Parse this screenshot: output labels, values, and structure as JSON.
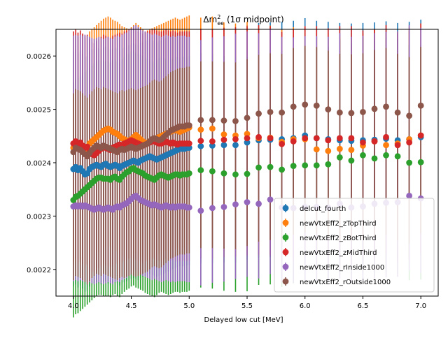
{
  "chart_data": {
    "type": "errorbar-scatter",
    "title": "Δm²ee (1σ midpoint)",
    "title_parts": {
      "base": "Δm",
      "sup": "2",
      "sub": "ee",
      "rest": " (1σ midpoint)"
    },
    "xlabel": "Delayed low cut [MeV]",
    "ylabel": "",
    "xlim": [
      3.85,
      7.15
    ],
    "ylim": [
      0.00215,
      0.00265
    ],
    "xticks": [
      "4.0",
      "4.5",
      "5.0",
      "5.5",
      "6.0",
      "6.5",
      "7.0"
    ],
    "yticks": [
      "0.0022",
      "0.0023",
      "0.0024",
      "0.0025",
      "0.0026"
    ],
    "legend_position": "lower-right",
    "series": [
      {
        "name": "delcut_fourth",
        "color": "#1f77b4",
        "err_low": 0.00022,
        "err_high": 0.00022,
        "x": [
          4.0,
          4.02,
          4.04,
          4.06,
          4.08,
          4.1,
          4.12,
          4.14,
          4.16,
          4.18,
          4.2,
          4.22,
          4.24,
          4.26,
          4.28,
          4.3,
          4.32,
          4.34,
          4.36,
          4.38,
          4.4,
          4.42,
          4.44,
          4.46,
          4.48,
          4.5,
          4.52,
          4.54,
          4.56,
          4.58,
          4.6,
          4.62,
          4.64,
          4.66,
          4.68,
          4.7,
          4.72,
          4.74,
          4.76,
          4.78,
          4.8,
          4.82,
          4.84,
          4.86,
          4.88,
          4.9,
          4.92,
          4.94,
          4.96,
          4.98,
          5.0,
          5.1,
          5.2,
          5.3,
          5.4,
          5.5,
          5.6,
          5.7,
          5.8,
          5.9,
          6.0,
          6.1,
          6.2,
          6.3,
          6.4,
          6.5,
          6.6,
          6.7,
          6.8,
          6.9,
          7.0
        ],
        "y": [
          0.002388,
          0.002392,
          0.002386,
          0.00239,
          0.002384,
          0.002378,
          0.00238,
          0.002388,
          0.002392,
          0.002394,
          0.002396,
          0.002394,
          0.002392,
          0.002396,
          0.002398,
          0.002394,
          0.002392,
          0.002394,
          0.002396,
          0.002394,
          0.00239,
          0.002394,
          0.002396,
          0.002398,
          0.0024,
          0.002402,
          0.002404,
          0.002402,
          0.0024,
          0.002404,
          0.002406,
          0.002408,
          0.00241,
          0.002412,
          0.00241,
          0.002408,
          0.002406,
          0.002408,
          0.00241,
          0.002412,
          0.002414,
          0.002416,
          0.002418,
          0.00242,
          0.002422,
          0.002424,
          0.002426,
          0.002426,
          0.002426,
          0.002428,
          0.002428,
          0.002431,
          0.002432,
          0.002433,
          0.002433,
          0.002438,
          0.002442,
          0.002443,
          0.002444,
          0.002446,
          0.002451,
          0.002446,
          0.002444,
          0.002442,
          0.002441,
          0.002442,
          0.002443,
          0.002445,
          0.002442,
          0.002444,
          0.002448
        ]
      },
      {
        "name": "newVtxEff2_zTopThird",
        "color": "#ff7f0e",
        "err_low": 0.00022,
        "err_high": 0.00021,
        "x": [
          4.0,
          4.02,
          4.04,
          4.06,
          4.08,
          4.1,
          4.12,
          4.14,
          4.16,
          4.18,
          4.2,
          4.22,
          4.24,
          4.26,
          4.28,
          4.3,
          4.32,
          4.34,
          4.36,
          4.38,
          4.4,
          4.42,
          4.44,
          4.46,
          4.48,
          4.5,
          4.52,
          4.54,
          4.56,
          4.58,
          4.6,
          4.62,
          4.64,
          4.66,
          4.68,
          4.7,
          4.72,
          4.74,
          4.76,
          4.78,
          4.8,
          4.82,
          4.84,
          4.86,
          4.88,
          4.9,
          4.92,
          4.94,
          4.96,
          4.98,
          5.0,
          5.1,
          5.2,
          5.3,
          5.4,
          5.5,
          5.6,
          5.7,
          5.8,
          5.9,
          6.0,
          6.1,
          6.2,
          6.3,
          6.4,
          6.5,
          6.6,
          6.7,
          6.8,
          6.9,
          7.0
        ],
        "y": [
          0.002428,
          0.002432,
          0.002426,
          0.002434,
          0.00243,
          0.002424,
          0.002428,
          0.002436,
          0.00244,
          0.002444,
          0.002448,
          0.002452,
          0.002456,
          0.00246,
          0.002462,
          0.002464,
          0.002462,
          0.002458,
          0.002456,
          0.002454,
          0.00245,
          0.002446,
          0.002444,
          0.002442,
          0.00244,
          0.002444,
          0.002448,
          0.002452,
          0.002448,
          0.002444,
          0.00244,
          0.002436,
          0.002438,
          0.00244,
          0.002442,
          0.002444,
          0.002446,
          0.002448,
          0.00245,
          0.002452,
          0.002454,
          0.002456,
          0.002458,
          0.00246,
          0.002462,
          0.00246,
          0.002458,
          0.00246,
          0.002462,
          0.002464,
          0.002466,
          0.002462,
          0.002464,
          0.002453,
          0.002451,
          0.002454,
          0.002446,
          0.002447,
          0.002439,
          0.002444,
          0.002444,
          0.002425,
          0.002422,
          0.002426,
          0.002424,
          0.002432,
          0.00244,
          0.002433,
          0.002436,
          0.002444,
          0.002451
        ]
      },
      {
        "name": "newVtxEff2_zBotThird",
        "color": "#2ca02c",
        "err_low": 0.00022,
        "err_high": 0.00022,
        "x": [
          4.0,
          4.02,
          4.04,
          4.06,
          4.08,
          4.1,
          4.12,
          4.14,
          4.16,
          4.18,
          4.2,
          4.22,
          4.24,
          4.26,
          4.28,
          4.3,
          4.32,
          4.34,
          4.36,
          4.38,
          4.4,
          4.42,
          4.44,
          4.46,
          4.48,
          4.5,
          4.52,
          4.54,
          4.56,
          4.58,
          4.6,
          4.62,
          4.64,
          4.66,
          4.68,
          4.7,
          4.72,
          4.74,
          4.76,
          4.78,
          4.8,
          4.82,
          4.84,
          4.86,
          4.88,
          4.9,
          4.92,
          4.94,
          4.96,
          4.98,
          5.0,
          5.1,
          5.2,
          5.3,
          5.4,
          5.5,
          5.6,
          5.7,
          5.8,
          5.9,
          6.0,
          6.1,
          6.2,
          6.3,
          6.4,
          6.5,
          6.6,
          6.7,
          6.8,
          6.9,
          7.0
        ],
        "y": [
          0.00233,
          0.002336,
          0.002338,
          0.002342,
          0.002346,
          0.00235,
          0.002354,
          0.002358,
          0.002362,
          0.002366,
          0.00237,
          0.002372,
          0.002372,
          0.00237,
          0.00237,
          0.00237,
          0.002368,
          0.002372,
          0.002374,
          0.00237,
          0.002368,
          0.002374,
          0.002378,
          0.002382,
          0.002384,
          0.002388,
          0.00239,
          0.002386,
          0.002384,
          0.002382,
          0.00238,
          0.002376,
          0.002374,
          0.002372,
          0.00237,
          0.002368,
          0.002372,
          0.002376,
          0.002378,
          0.002376,
          0.002374,
          0.002372,
          0.002374,
          0.002376,
          0.002378,
          0.002378,
          0.002376,
          0.002378,
          0.002378,
          0.002378,
          0.00238,
          0.002386,
          0.002384,
          0.00238,
          0.002378,
          0.002379,
          0.002391,
          0.002392,
          0.002387,
          0.002394,
          0.002395,
          0.002395,
          0.002397,
          0.00241,
          0.002404,
          0.002414,
          0.002408,
          0.002414,
          0.002412,
          0.0024,
          0.002401
        ]
      },
      {
        "name": "newVtxEff2_zMidThird",
        "color": "#d62728",
        "err_low": 0.00022,
        "err_high": 0.00021,
        "x": [
          4.0,
          4.02,
          4.04,
          4.06,
          4.08,
          4.1,
          4.12,
          4.14,
          4.16,
          4.18,
          4.2,
          4.22,
          4.24,
          4.26,
          4.28,
          4.3,
          4.32,
          4.34,
          4.36,
          4.38,
          4.4,
          4.42,
          4.44,
          4.46,
          4.48,
          4.5,
          4.52,
          4.54,
          4.56,
          4.58,
          4.6,
          4.62,
          4.64,
          4.66,
          4.68,
          4.7,
          4.72,
          4.74,
          4.76,
          4.78,
          4.8,
          4.82,
          4.84,
          4.86,
          4.88,
          4.9,
          4.92,
          4.94,
          4.96,
          4.98,
          5.0,
          5.1,
          5.2,
          5.3,
          5.4,
          5.5,
          5.6,
          5.7,
          5.8,
          5.9,
          6.0,
          6.1,
          6.2,
          6.3,
          6.4,
          6.5,
          6.6,
          6.7,
          6.8,
          6.9,
          7.0
        ],
        "y": [
          0.002436,
          0.00244,
          0.002434,
          0.002438,
          0.002432,
          0.002428,
          0.00243,
          0.002422,
          0.002416,
          0.002414,
          0.002418,
          0.002422,
          0.002426,
          0.00243,
          0.002428,
          0.002426,
          0.002424,
          0.002428,
          0.00243,
          0.002432,
          0.002434,
          0.002432,
          0.002436,
          0.002438,
          0.00244,
          0.002442,
          0.00244,
          0.002438,
          0.002436,
          0.002434,
          0.002432,
          0.002434,
          0.002436,
          0.002438,
          0.00244,
          0.00244,
          0.002438,
          0.002436,
          0.002436,
          0.002438,
          0.00244,
          0.002438,
          0.002436,
          0.002438,
          0.002436,
          0.002434,
          0.002436,
          0.002436,
          0.002436,
          0.002436,
          0.002436,
          0.002441,
          0.00244,
          0.002443,
          0.002444,
          0.002446,
          0.002448,
          0.002446,
          0.002435,
          0.00244,
          0.002446,
          0.002446,
          0.002442,
          0.002446,
          0.002446,
          0.002438,
          0.00244,
          0.002448,
          0.002433,
          0.002438,
          0.002451
        ]
      },
      {
        "name": "newVtxEff2_rInside1000",
        "color": "#9467bd",
        "err_low": 0.00014,
        "err_high": 0.00032,
        "x": [
          4.0,
          4.02,
          4.04,
          4.06,
          4.08,
          4.1,
          4.12,
          4.14,
          4.16,
          4.18,
          4.2,
          4.22,
          4.24,
          4.26,
          4.28,
          4.3,
          4.32,
          4.34,
          4.36,
          4.38,
          4.4,
          4.42,
          4.44,
          4.46,
          4.48,
          4.5,
          4.52,
          4.54,
          4.56,
          4.58,
          4.6,
          4.62,
          4.64,
          4.66,
          4.68,
          4.7,
          4.72,
          4.74,
          4.76,
          4.78,
          4.8,
          4.82,
          4.84,
          4.86,
          4.88,
          4.9,
          4.92,
          4.94,
          4.96,
          4.98,
          5.0,
          5.1,
          5.2,
          5.3,
          5.4,
          5.5,
          5.6,
          5.7,
          5.8,
          5.9,
          6.0,
          6.1,
          6.2,
          6.3,
          6.4,
          6.5,
          6.6,
          6.7,
          6.8,
          6.9,
          7.0
        ],
        "y": [
          0.002318,
          0.00232,
          0.002318,
          0.00232,
          0.002318,
          0.00232,
          0.002318,
          0.002316,
          0.002314,
          0.002312,
          0.002314,
          0.002316,
          0.002314,
          0.002312,
          0.002314,
          0.002316,
          0.002314,
          0.002312,
          0.002316,
          0.002318,
          0.002316,
          0.00232,
          0.002322,
          0.002324,
          0.002328,
          0.002332,
          0.002336,
          0.002338,
          0.002334,
          0.00233,
          0.002328,
          0.002326,
          0.002324,
          0.002322,
          0.00232,
          0.002322,
          0.00232,
          0.002318,
          0.002316,
          0.002318,
          0.00232,
          0.002318,
          0.002316,
          0.002318,
          0.002316,
          0.002318,
          0.002318,
          0.002318,
          0.002318,
          0.002316,
          0.002316,
          0.00231,
          0.002315,
          0.002317,
          0.002322,
          0.002326,
          0.002323,
          0.002331,
          0.002316,
          0.002315,
          0.002317,
          0.002317,
          0.002316,
          0.002323,
          0.002316,
          0.002318,
          0.002323,
          0.002325,
          0.002326,
          0.002338,
          0.002333
        ]
      },
      {
        "name": "newVtxEff2_rOutside1000",
        "color": "#8c564b",
        "err_low": 0.00024,
        "err_high": 0.00011,
        "x": [
          4.0,
          4.02,
          4.04,
          4.06,
          4.08,
          4.1,
          4.12,
          4.14,
          4.16,
          4.18,
          4.2,
          4.22,
          4.24,
          4.26,
          4.28,
          4.3,
          4.32,
          4.34,
          4.36,
          4.38,
          4.4,
          4.42,
          4.44,
          4.46,
          4.48,
          4.5,
          4.52,
          4.54,
          4.56,
          4.58,
          4.6,
          4.62,
          4.64,
          4.66,
          4.68,
          4.7,
          4.72,
          4.74,
          4.76,
          4.78,
          4.8,
          4.82,
          4.84,
          4.86,
          4.88,
          4.9,
          4.92,
          4.94,
          4.96,
          4.98,
          5.0,
          5.1,
          5.2,
          5.3,
          5.4,
          5.5,
          5.6,
          5.7,
          5.8,
          5.9,
          6.0,
          6.1,
          6.2,
          6.3,
          6.4,
          6.5,
          6.6,
          6.7,
          6.8,
          6.9,
          7.0
        ],
        "y": [
          0.00242,
          0.002428,
          0.002426,
          0.002424,
          0.00242,
          0.002416,
          0.002412,
          0.002418,
          0.002424,
          0.002428,
          0.002432,
          0.00243,
          0.002428,
          0.002432,
          0.00243,
          0.002428,
          0.002426,
          0.002424,
          0.002422,
          0.00242,
          0.002424,
          0.002426,
          0.002424,
          0.002426,
          0.002428,
          0.00243,
          0.002428,
          0.002426,
          0.002428,
          0.00243,
          0.002432,
          0.002434,
          0.002436,
          0.00244,
          0.002444,
          0.002446,
          0.002444,
          0.002442,
          0.002444,
          0.002448,
          0.002452,
          0.002456,
          0.00246,
          0.002462,
          0.002464,
          0.002466,
          0.002468,
          0.002468,
          0.002468,
          0.00247,
          0.00247,
          0.00248,
          0.00248,
          0.002479,
          0.002478,
          0.002484,
          0.002492,
          0.002495,
          0.002494,
          0.002505,
          0.002509,
          0.002507,
          0.0025,
          0.002494,
          0.002493,
          0.002495,
          0.002501,
          0.002505,
          0.002494,
          0.002488,
          0.002507
        ]
      }
    ]
  }
}
